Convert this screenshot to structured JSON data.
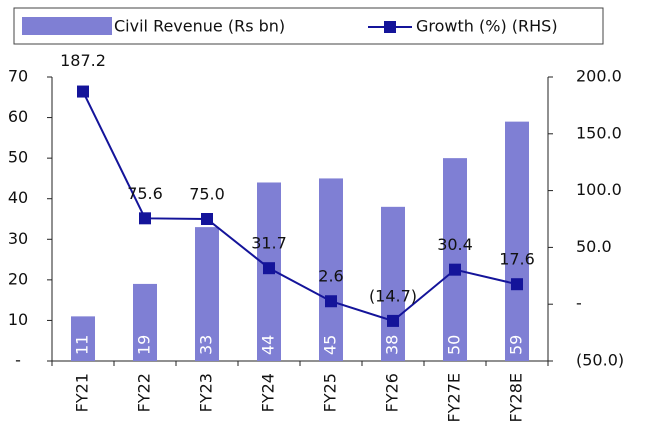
{
  "chart_data": {
    "type": "combo",
    "categories": [
      "FY21",
      "FY22",
      "FY23",
      "FY24",
      "FY25",
      "FY26",
      "FY27E",
      "FY28E"
    ],
    "series": [
      {
        "name": "Civil Revenue (Rs bn)",
        "type": "bar",
        "color": "#7f7fd4",
        "values": [
          11,
          19,
          33,
          44,
          45,
          38,
          50,
          59
        ]
      },
      {
        "name": "Growth (%) (RHS)",
        "type": "line",
        "axis": "y2",
        "color": "#14149a",
        "values": [
          187.2,
          75.6,
          75.0,
          31.7,
          2.6,
          -14.7,
          30.4,
          17.6
        ],
        "value_labels": [
          "187.2",
          "75.6",
          "75.0",
          "31.7",
          "2.6",
          "(14.7)",
          "30.4",
          "17.6"
        ]
      }
    ],
    "ylim": [
      0,
      70
    ],
    "yticks": [
      {
        "value": 0,
        "label": "-"
      },
      10,
      20,
      30,
      40,
      50,
      60,
      70
    ],
    "y2lim": [
      -50,
      200
    ],
    "y2ticks": [
      {
        "value": -50,
        "label": "(50.0)"
      },
      {
        "value": 0,
        "label": "-"
      },
      {
        "value": 50,
        "label": "50.0"
      },
      {
        "value": 100,
        "label": "100.0"
      },
      {
        "value": 150,
        "label": "150.0"
      },
      {
        "value": 200,
        "label": "200.0"
      }
    ],
    "legend": "top"
  }
}
